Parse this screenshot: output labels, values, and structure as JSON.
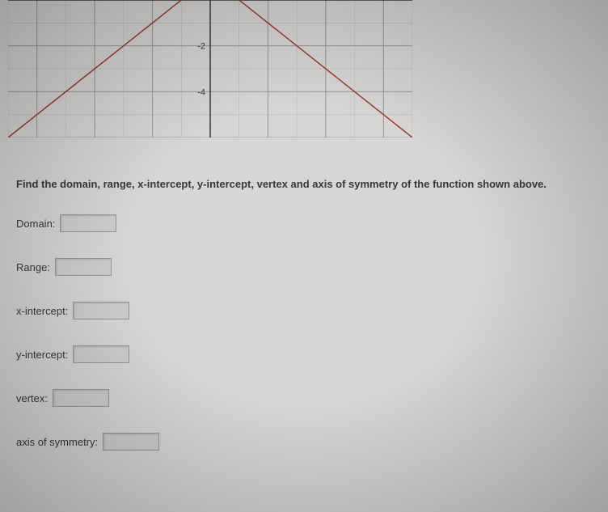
{
  "graph": {
    "type": "line",
    "visible_window": {
      "x": [
        -7,
        7
      ],
      "y": [
        -6,
        0
      ]
    },
    "axis_labels_y": [
      -2,
      -4
    ],
    "axis_label_fontsize": 11,
    "axis_label_color": "#3a3836",
    "background_color": "#d8d6d4",
    "major_grid_color": "#9a9794",
    "minor_grid_color": "#b8b6b3",
    "major_grid_width": 1,
    "minor_grid_width": 0.5,
    "axis_color": "#3a3836",
    "axis_width": 1.5,
    "lines": [
      {
        "points": [
          [
            -7,
            -6
          ],
          [
            0,
            1
          ]
        ],
        "color": "#a03a2a",
        "width": 1.5
      },
      {
        "points": [
          [
            0,
            1
          ],
          [
            7,
            -6
          ]
        ],
        "color": "#a03a2a",
        "width": 1.5
      }
    ]
  },
  "question": "Find the domain, range, x-intercept, y-intercept, vertex and axis of symmetry of the function shown above.",
  "fields": [
    {
      "label": "Domain:",
      "value": ""
    },
    {
      "label": "Range:",
      "value": ""
    },
    {
      "label": "x-intercept:",
      "value": ""
    },
    {
      "label": "y-intercept:",
      "value": ""
    },
    {
      "label": "vertex:",
      "value": ""
    },
    {
      "label": "axis of symmetry:",
      "value": ""
    }
  ]
}
